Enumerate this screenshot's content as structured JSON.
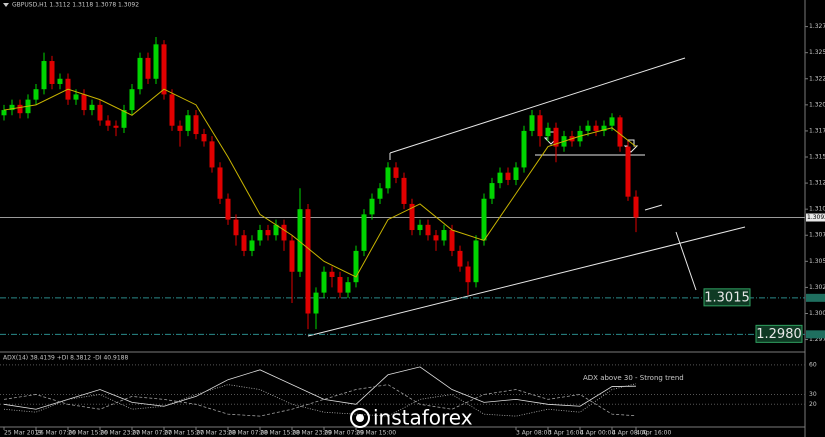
{
  "chart_data": {
    "type": "candlestick",
    "title": "GBPUSD,H1  1.3112 1.3118 1.3078 1.3092",
    "categories": [
      "25 Mar 2019",
      null,
      null,
      null,
      "26 Mar 07:00",
      null,
      null,
      null,
      "26 Mar 15:00",
      null,
      null,
      null,
      "26 Mar 23:00",
      null,
      null,
      null,
      "27 Mar 07:00",
      null,
      null,
      null,
      "27 Mar 15:00",
      null,
      null,
      null,
      "27 Mar 23:00",
      null,
      null,
      null,
      "28 Mar 07:00",
      null,
      null,
      null,
      "28 Mar 15:00",
      null,
      null,
      null,
      "28 Mar 23:00",
      null,
      null,
      null,
      "29 Mar 07:00",
      null,
      null,
      null,
      "29 Mar 15:00",
      null,
      null,
      null,
      null,
      null,
      null,
      null,
      null,
      null,
      null,
      null,
      null,
      null,
      null,
      null,
      null,
      null,
      null,
      null,
      "3 Apr 08:00",
      null,
      null,
      null,
      "3 Apr 16:00",
      null,
      null,
      null,
      "4 Apr 00:00",
      null,
      null,
      null,
      "4 Apr 08:00",
      null,
      null,
      "4 Apr 16:00"
    ],
    "open": [
      1.319,
      1.3195,
      1.32,
      1.3192,
      1.3205,
      1.3215,
      1.3242,
      1.322,
      1.3225,
      1.3205,
      1.321,
      1.3195,
      1.32,
      1.3185,
      1.318,
      1.3178,
      1.3195,
      1.3215,
      1.3245,
      1.3225,
      1.3258,
      1.321,
      1.318,
      1.3175,
      1.319,
      1.3172,
      1.3165,
      1.314,
      1.311,
      1.309,
      1.3075,
      1.306,
      1.307,
      1.308,
      1.3075,
      1.3085,
      1.307,
      1.304,
      1.31,
      1.3,
      1.302,
      1.304,
      1.3035,
      1.302,
      1.303,
      1.306,
      1.3095,
      1.311,
      1.312,
      1.314,
      1.313,
      1.3105,
      1.308,
      1.3085,
      1.3075,
      1.307,
      1.308,
      1.306,
      1.3045,
      1.303,
      1.307,
      1.311,
      1.3125,
      1.3135,
      1.3128,
      1.314,
      1.3175,
      1.319,
      1.317,
      1.3178,
      1.316,
      1.317,
      1.3165,
      1.3175,
      1.318,
      1.3175,
      1.318,
      1.3188,
      1.316,
      1.3112
    ],
    "high": [
      1.32,
      1.3205,
      1.3205,
      1.321,
      1.322,
      1.325,
      1.3247,
      1.323,
      1.323,
      1.3215,
      1.3215,
      1.3205,
      1.3205,
      1.319,
      1.3185,
      1.32,
      1.322,
      1.325,
      1.325,
      1.3265,
      1.3262,
      1.3215,
      1.3185,
      1.3195,
      1.3195,
      1.3177,
      1.317,
      1.3145,
      1.3115,
      1.3095,
      1.308,
      1.3075,
      1.3085,
      1.3085,
      1.309,
      1.309,
      1.3075,
      1.312,
      1.3105,
      1.3025,
      1.3045,
      1.3045,
      1.304,
      1.3035,
      1.3065,
      1.31,
      1.3115,
      1.3125,
      1.3145,
      1.3145,
      1.3135,
      1.311,
      1.309,
      1.309,
      1.308,
      1.3085,
      1.3085,
      1.3065,
      1.305,
      1.3075,
      1.3115,
      1.313,
      1.314,
      1.314,
      1.3145,
      1.318,
      1.3195,
      1.3195,
      1.3183,
      1.3183,
      1.3175,
      1.3175,
      1.318,
      1.3185,
      1.3185,
      1.3185,
      1.3192,
      1.319,
      1.3165,
      1.3118
    ],
    "low": [
      1.3185,
      1.319,
      1.3187,
      1.3187,
      1.32,
      1.321,
      1.3215,
      1.3215,
      1.32,
      1.32,
      1.319,
      1.319,
      1.318,
      1.3175,
      1.317,
      1.3173,
      1.319,
      1.321,
      1.322,
      1.322,
      1.3205,
      1.3175,
      1.316,
      1.317,
      1.3167,
      1.316,
      1.3135,
      1.3105,
      1.3085,
      1.3065,
      1.3055,
      1.3055,
      1.3065,
      1.307,
      1.307,
      1.306,
      1.301,
      1.3035,
      1.2985,
      1.2985,
      1.3015,
      1.3025,
      1.3015,
      1.3015,
      1.3025,
      1.3055,
      1.309,
      1.3105,
      1.3115,
      1.3125,
      1.31,
      1.3075,
      1.3075,
      1.307,
      1.306,
      1.3065,
      1.3055,
      1.304,
      1.3018,
      1.3025,
      1.3065,
      1.3105,
      1.312,
      1.3123,
      1.3123,
      1.3135,
      1.317,
      1.316,
      1.3165,
      1.3145,
      1.3155,
      1.316,
      1.316,
      1.317,
      1.317,
      1.317,
      1.3175,
      1.3155,
      1.3108,
      1.3078
    ],
    "close": [
      1.3195,
      1.32,
      1.3192,
      1.3205,
      1.3215,
      1.3242,
      1.322,
      1.3225,
      1.3205,
      1.321,
      1.3195,
      1.32,
      1.3185,
      1.318,
      1.3178,
      1.3195,
      1.3215,
      1.3245,
      1.3225,
      1.3258,
      1.321,
      1.318,
      1.3175,
      1.319,
      1.3172,
      1.3165,
      1.314,
      1.311,
      1.309,
      1.3075,
      1.306,
      1.307,
      1.308,
      1.3075,
      1.3085,
      1.307,
      1.304,
      1.31,
      1.3,
      1.302,
      1.304,
      1.3035,
      1.302,
      1.303,
      1.306,
      1.3095,
      1.311,
      1.312,
      1.314,
      1.313,
      1.3105,
      1.308,
      1.3085,
      1.3075,
      1.307,
      1.308,
      1.306,
      1.3045,
      1.303,
      1.307,
      1.311,
      1.3125,
      1.3135,
      1.3128,
      1.314,
      1.3175,
      1.319,
      1.317,
      1.3178,
      1.316,
      1.317,
      1.3165,
      1.3175,
      1.318,
      1.3175,
      1.318,
      1.3188,
      1.316,
      1.3112,
      1.3092
    ],
    "up_color": "#00d400",
    "down_color": "#e00000",
    "ma": {
      "color": "#c8b400",
      "x": [
        0,
        4,
        8,
        12,
        16,
        20,
        24,
        28,
        32,
        36,
        40,
        44,
        48,
        52,
        56,
        60,
        64,
        68,
        72,
        76,
        79
      ],
      "values": [
        1.3195,
        1.32,
        1.3215,
        1.3205,
        1.319,
        1.3215,
        1.32,
        1.315,
        1.3095,
        1.3075,
        1.305,
        1.3035,
        1.309,
        1.3105,
        1.308,
        1.307,
        1.3115,
        1.316,
        1.317,
        1.3178,
        1.316
      ]
    },
    "ylim": [
      1.2965,
      1.3289
    ],
    "yticks": [
      {
        "value": 1.2975,
        "label": "1.2975"
      },
      {
        "value": 1.3,
        "label": "1.3000"
      },
      {
        "value": 1.3025,
        "label": "1.3025"
      },
      {
        "value": 1.305,
        "label": "1.3050"
      },
      {
        "value": 1.3075,
        "label": "1.3075"
      },
      {
        "value": 1.31,
        "label": "1.3100"
      },
      {
        "value": 1.3125,
        "label": "1.3125"
      },
      {
        "value": 1.315,
        "label": "1.3150"
      },
      {
        "value": 1.3175,
        "label": "1.3175"
      },
      {
        "value": 1.32,
        "label": "1.3200"
      },
      {
        "value": 1.3225,
        "label": "1.3225"
      },
      {
        "value": 1.325,
        "label": "1.3250"
      },
      {
        "value": 1.3275,
        "label": "1.3275"
      }
    ],
    "current_price": {
      "value": 1.3092,
      "label": "1.3092"
    },
    "levels": [
      {
        "value": 1.3015,
        "label": "1.3015"
      },
      {
        "value": 1.298,
        "label": "1.2980"
      }
    ],
    "indicator": {
      "title": "ADX(14) 38.4139 +DI 8.3812 -DI 40.9188",
      "annotation": "ADX above 30 - Strong trend",
      "ylim": [
        0,
        65
      ],
      "yticks": [
        20,
        30,
        60
      ],
      "x": [
        0,
        4,
        8,
        12,
        16,
        20,
        24,
        28,
        32,
        36,
        40,
        44,
        48,
        52,
        56,
        60,
        64,
        68,
        72,
        76,
        79
      ],
      "series": [
        {
          "name": "ADX",
          "color": "#e0e0e0",
          "values": [
            20,
            15,
            25,
            35,
            22,
            18,
            28,
            45,
            55,
            40,
            25,
            20,
            50,
            58,
            35,
            22,
            25,
            20,
            18,
            38,
            38.4139
          ]
        },
        {
          "name": "+DI",
          "color": "#a0a0a0",
          "values": [
            25,
            30,
            20,
            15,
            28,
            25,
            20,
            10,
            8,
            15,
            25,
            35,
            40,
            20,
            15,
            30,
            35,
            25,
            30,
            10,
            8.3812
          ]
        },
        {
          "name": "-DI",
          "color": "#b0b0b0",
          "values": [
            15,
            12,
            25,
            30,
            15,
            18,
            30,
            40,
            35,
            20,
            12,
            10,
            8,
            25,
            30,
            10,
            8,
            15,
            12,
            35,
            40.9188
          ]
        }
      ]
    },
    "logo": "instaforex"
  }
}
